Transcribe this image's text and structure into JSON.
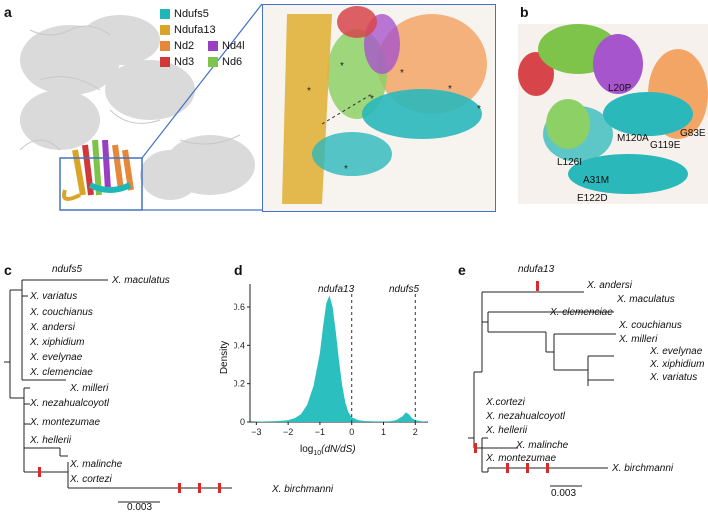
{
  "panels": {
    "a": "a",
    "b": "b",
    "c": "c",
    "d": "d",
    "e": "e"
  },
  "legend": [
    {
      "label": "Ndufs5",
      "color": "#1fb6b8"
    },
    {
      "label": "Ndufa13",
      "color": "#d9a527"
    },
    {
      "label": "Nd2",
      "color": "#e7873a"
    },
    {
      "label": "Nd4l",
      "color": "#9a3fc0"
    },
    {
      "label": "Nd3",
      "color": "#d1383a"
    },
    {
      "label": "Nd6",
      "color": "#7ec44b"
    }
  ],
  "mutations": [
    "L20P",
    "G83E",
    "M120A",
    "G119E",
    "L126I",
    "A31M",
    "E122D"
  ],
  "tree_c": {
    "gene_label": "ndufs5",
    "taxa": [
      "X. maculatus",
      "X. variatus",
      "X. couchianus",
      "X. andersi",
      "X. xiphidium",
      "X. evelynae",
      "X. clemenciae",
      "X. milleri",
      "X. nezahualcoyotl",
      "X. montezumae",
      "X. hellerii",
      "X. malinche",
      "X. cortezi",
      "X. birchmanni"
    ],
    "scale": "0.003"
  },
  "tree_e": {
    "gene_label": "ndufa13",
    "taxa": [
      "X. andersi",
      "X. maculatus",
      "X. clemenciae",
      "X. couchianus",
      "X. milleri",
      "X. evelynae",
      "X. xiphidium",
      "X. variatus",
      "X.cortezi",
      "X. nezahualcoyotl",
      "X. hellerii",
      "X. malinche",
      "X. montezumae",
      "X. birchmanni"
    ],
    "scale": "0.003"
  },
  "chart_data": {
    "type": "area",
    "xlabel_main": "log",
    "xlabel_sub": "10",
    "xlabel_ratio": "(dN/dS)",
    "ylabel": "Density",
    "xlim": [
      -3.2,
      2.4
    ],
    "ylim": [
      0,
      0.72
    ],
    "xticks": [
      "-3",
      "-2",
      "-1",
      "0",
      "1",
      "2"
    ],
    "yticks": [
      "0",
      "0.2",
      "0.4",
      "0.6"
    ],
    "x": [
      -3.2,
      -3.0,
      -2.5,
      -2.2,
      -2.0,
      -1.8,
      -1.6,
      -1.4,
      -1.2,
      -1.0,
      -0.9,
      -0.8,
      -0.7,
      -0.6,
      -0.5,
      -0.4,
      -0.3,
      -0.2,
      -0.1,
      0.0,
      0.2,
      0.4,
      0.8,
      1.2,
      1.4,
      1.6,
      1.7,
      1.8,
      1.9,
      2.0,
      2.2,
      2.4
    ],
    "y": [
      0.0,
      0.002,
      0.004,
      0.006,
      0.01,
      0.02,
      0.04,
      0.09,
      0.19,
      0.36,
      0.5,
      0.62,
      0.66,
      0.6,
      0.47,
      0.32,
      0.19,
      0.1,
      0.05,
      0.025,
      0.01,
      0.005,
      0.003,
      0.004,
      0.01,
      0.03,
      0.05,
      0.04,
      0.02,
      0.01,
      0.004,
      0.0
    ],
    "markers": [
      {
        "label": "ndufa13",
        "x": 0.0
      },
      {
        "label": "ndufs5",
        "x": 2.0
      }
    ],
    "color": "#2bbfc0"
  }
}
